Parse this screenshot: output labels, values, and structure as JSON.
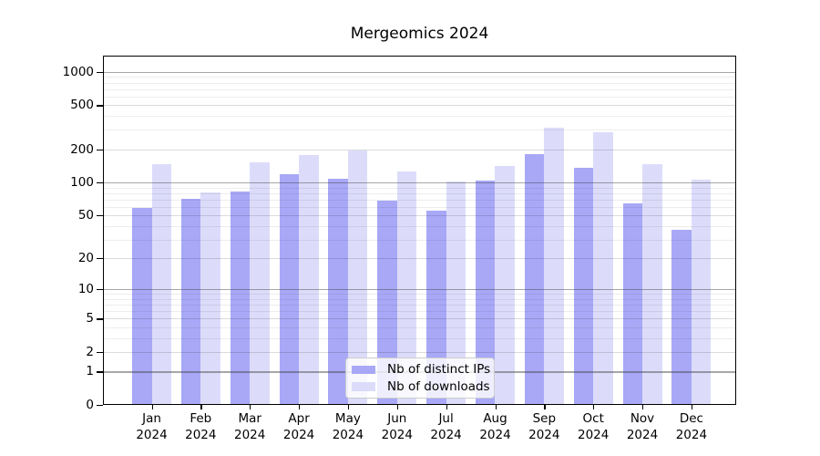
{
  "chart_data": {
    "type": "bar",
    "title": "Mergeomics 2024",
    "categories": [
      "Jan 2024",
      "Feb 2024",
      "Mar 2024",
      "Apr 2024",
      "May 2024",
      "Jun 2024",
      "Jul 2024",
      "Aug 2024",
      "Sep 2024",
      "Oct 2024",
      "Nov 2024",
      "Dec 2024"
    ],
    "series": [
      {
        "name": "Nb of distinct IPs",
        "color": "#a8a8f7",
        "values": [
          59,
          71,
          83,
          119,
          108,
          68,
          55,
          105,
          182,
          136,
          64,
          37
        ]
      },
      {
        "name": "Nb of downloads",
        "color": "#dcdcfa",
        "values": [
          148,
          81,
          153,
          177,
          195,
          126,
          102,
          140,
          315,
          285,
          146,
          106
        ]
      }
    ],
    "yscale": "log1p",
    "ylim": [
      0,
      1400
    ],
    "yticks": [
      0,
      1,
      2,
      5,
      10,
      20,
      50,
      100,
      200,
      500,
      1000
    ],
    "minor_gridlines": [
      3,
      4,
      6,
      7,
      8,
      9,
      30,
      40,
      60,
      70,
      80,
      90,
      300,
      400,
      600,
      700,
      800,
      900
    ],
    "xlabel": "",
    "ylabel": "",
    "grid": true,
    "legend_position": "lower center",
    "colors": {
      "major_grid": "#a7a7a7",
      "minor_grid": "#ededed",
      "axis": "#000000",
      "background": "#ffffff"
    }
  }
}
